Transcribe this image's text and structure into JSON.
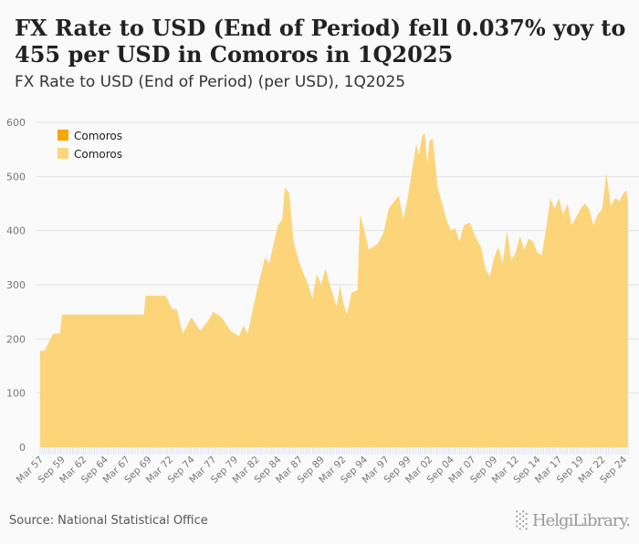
{
  "title": "FX Rate to USD (End of Period) fell 0.037% yoy to 455 per USD in Comoros in 1Q2025",
  "subtitle": "FX Rate to USD (End of Period) (per USD), 1Q2025",
  "source": "Source: National Statistical Office",
  "logo": "HelgiLibrary.",
  "chart_data": {
    "type": "area",
    "title": "FX Rate to USD (End of Period) (per USD), 1Q2025",
    "xlabel": "",
    "ylabel": "",
    "ylim": [
      0,
      600
    ],
    "yticks": [
      0,
      100,
      200,
      300,
      400,
      500,
      600
    ],
    "xlim": [
      1957,
      2025
    ],
    "xtick_labels": [
      "Mar 57",
      "Sep 59",
      "Mar 62",
      "Sep 64",
      "Mar 67",
      "Sep 69",
      "Mar 72",
      "Sep 74",
      "Mar 77",
      "Sep 79",
      "Mar 82",
      "Sep 84",
      "Mar 87",
      "Sep 89",
      "Mar 92",
      "Sep 94",
      "Mar 97",
      "Sep 99",
      "Mar 02",
      "Sep 04",
      "Mar 07",
      "Sep 09",
      "Mar 12",
      "Sep 14",
      "Mar 17",
      "Sep 19",
      "Mar 22",
      "Sep 24"
    ],
    "grid": true,
    "legend": {
      "placement": "top-left",
      "entries": [
        {
          "label": "Comoros",
          "color": "#f5a800"
        },
        {
          "label": "Comoros",
          "color": "#fcd57a"
        }
      ]
    },
    "colors": {
      "fill": "#fcd57a"
    },
    "series": [
      {
        "name": "Comoros",
        "x": [
          1957,
          1957.5,
          1958.5,
          1959.3,
          1959.5,
          1969,
          1969.2,
          1971.5,
          1972.3,
          1972.8,
          1973.5,
          1974.5,
          1975.5,
          1976.5,
          1977,
          1978,
          1979,
          1980,
          1980.5,
          1981,
          1982,
          1983,
          1983.5,
          1984.5,
          1985,
          1985.3,
          1985.8,
          1986.3,
          1987,
          1988,
          1988.5,
          1989,
          1989.5,
          1990,
          1990.7,
          1991.3,
          1991.7,
          1992,
          1992.5,
          1993,
          1993.7,
          1994,
          1994.5,
          1995,
          1996,
          1996.7,
          1997.3,
          1998,
          1998.5,
          1999,
          1999.5,
          2000,
          2000.5,
          2000.8,
          2001.2,
          2001.5,
          2001.8,
          2002,
          2002.4,
          2003,
          2003.5,
          2004,
          2004.5,
          2005,
          2005.5,
          2006,
          2006.7,
          2007.3,
          2008,
          2008.5,
          2009,
          2009.5,
          2010,
          2010.5,
          2011,
          2011.5,
          2012,
          2012.5,
          2013,
          2013.5,
          2014,
          2014.5,
          2015,
          2015.5,
          2016,
          2016.5,
          2017,
          2017.5,
          2018,
          2018.5,
          2019,
          2019.5,
          2020,
          2020.5,
          2021,
          2021.5,
          2022,
          2022.5,
          2022.8,
          2023,
          2023.5,
          2024,
          2024.5,
          2024.8,
          2025
        ],
        "y": [
          178,
          178,
          210,
          210,
          245,
          245,
          280,
          280,
          255,
          255,
          210,
          240,
          215,
          235,
          250,
          240,
          215,
          205,
          225,
          210,
          285,
          350,
          340,
          410,
          420,
          480,
          470,
          380,
          340,
          300,
          275,
          320,
          300,
          330,
          290,
          260,
          300,
          270,
          245,
          285,
          290,
          430,
          400,
          365,
          375,
          395,
          440,
          455,
          465,
          420,
          460,
          510,
          560,
          540,
          575,
          580,
          520,
          565,
          570,
          480,
          450,
          420,
          400,
          405,
          380,
          410,
          415,
          390,
          370,
          330,
          315,
          350,
          370,
          340,
          400,
          345,
          360,
          390,
          365,
          385,
          380,
          360,
          355,
          400,
          460,
          440,
          460,
          430,
          450,
          410,
          425,
          440,
          450,
          440,
          410,
          430,
          440,
          505,
          470,
          445,
          460,
          455,
          470,
          475,
          455
        ]
      }
    ]
  }
}
